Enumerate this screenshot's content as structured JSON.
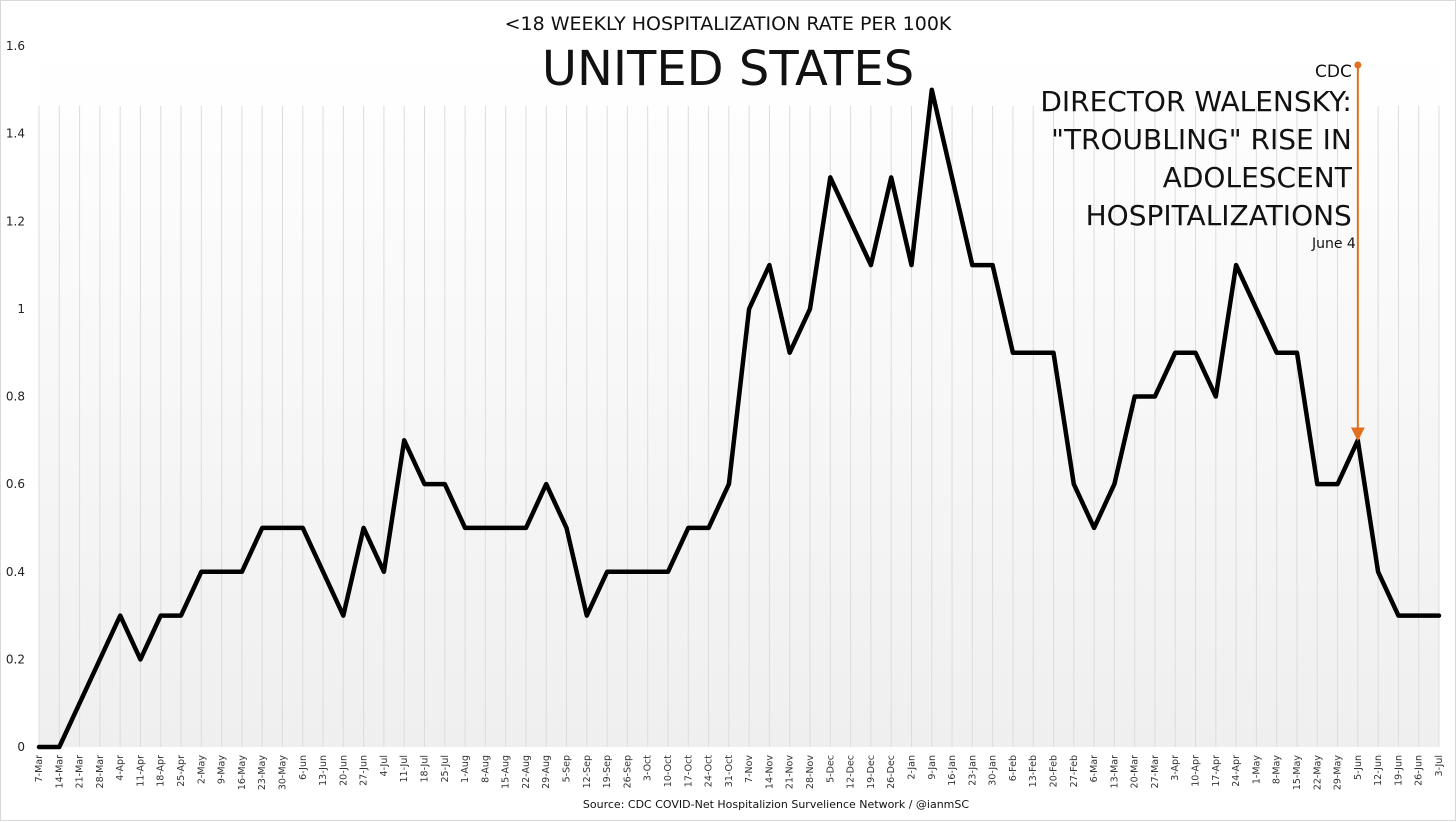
{
  "chart_data": {
    "type": "line",
    "title": "<18 WEEKLY HOSPITALIZATION RATE PER 100K",
    "subtitle": "UNITED STATES",
    "source": "Source: CDC COVID-Net Hospitalizion Survelience Network / @ianmSC",
    "ylim": [
      0,
      1.6
    ],
    "yticks": [
      "0",
      "0.2",
      "0.4",
      "0.6",
      "0.8",
      "1",
      "1.2",
      "1.4",
      "1.6"
    ],
    "grid": "vertical",
    "categories": [
      "7-Mar",
      "14-Mar",
      "21-Mar",
      "28-Mar",
      "4-Apr",
      "11-Apr",
      "18-Apr",
      "25-Apr",
      "2-May",
      "9-May",
      "16-May",
      "23-May",
      "30-May",
      "6-Jun",
      "13-Jun",
      "20-Jun",
      "27-Jun",
      "4-Jul",
      "11-Jul",
      "18-Jul",
      "25-Jul",
      "1-Aug",
      "8-Aug",
      "15-Aug",
      "22-Aug",
      "29-Aug",
      "5-Sep",
      "12-Sep",
      "19-Sep",
      "26-Sep",
      "3-Oct",
      "10-Oct",
      "17-Oct",
      "24-Oct",
      "31-Oct",
      "7-Nov",
      "14-Nov",
      "21-Nov",
      "28-Nov",
      "5-Dec",
      "12-Dec",
      "19-Dec",
      "26-Dec",
      "2-Jan",
      "9-Jan",
      "16-Jan",
      "23-Jan",
      "30-Jan",
      "6-Feb",
      "13-Feb",
      "20-Feb",
      "27-Feb",
      "6-Mar",
      "13-Mar",
      "20-Mar",
      "27-Mar",
      "3-Apr",
      "10-Apr",
      "17-Apr",
      "24-Apr",
      "1-May",
      "8-May",
      "15-May",
      "22-May",
      "29-May",
      "5-Jun",
      "12-Jun",
      "19-Jun",
      "26-Jun",
      "3-Jul"
    ],
    "values": [
      0,
      0,
      0.1,
      0.2,
      0.3,
      0.2,
      0.3,
      0.3,
      0.4,
      0.4,
      0.4,
      0.5,
      0.5,
      0.5,
      0.4,
      0.3,
      0.5,
      0.4,
      0.7,
      0.6,
      0.6,
      0.5,
      0.5,
      0.5,
      0.5,
      0.6,
      0.5,
      0.3,
      0.4,
      0.4,
      0.4,
      0.4,
      0.5,
      0.5,
      0.6,
      1.0,
      1.1,
      0.9,
      1.0,
      1.3,
      1.2,
      1.1,
      1.3,
      1.1,
      1.5,
      1.3,
      1.1,
      1.1,
      0.9,
      0.9,
      0.9,
      0.6,
      0.5,
      0.6,
      0.8,
      0.8,
      0.9,
      0.9,
      0.8,
      1.1,
      1.0,
      0.9,
      0.9,
      0.6,
      0.6,
      0.7,
      0.4,
      0.3,
      0.3,
      0.3
    ],
    "annotation": {
      "category": "5-Jun",
      "source_label": "CDC",
      "text_lines": [
        "DIRECTOR WALENSKY:",
        "\"TROUBLING\" RISE IN",
        "ADOLESCENT",
        "HOSPITALIZATIONS"
      ],
      "date_label": "June 4",
      "color": "#e07020"
    },
    "line_color": "#000000"
  }
}
